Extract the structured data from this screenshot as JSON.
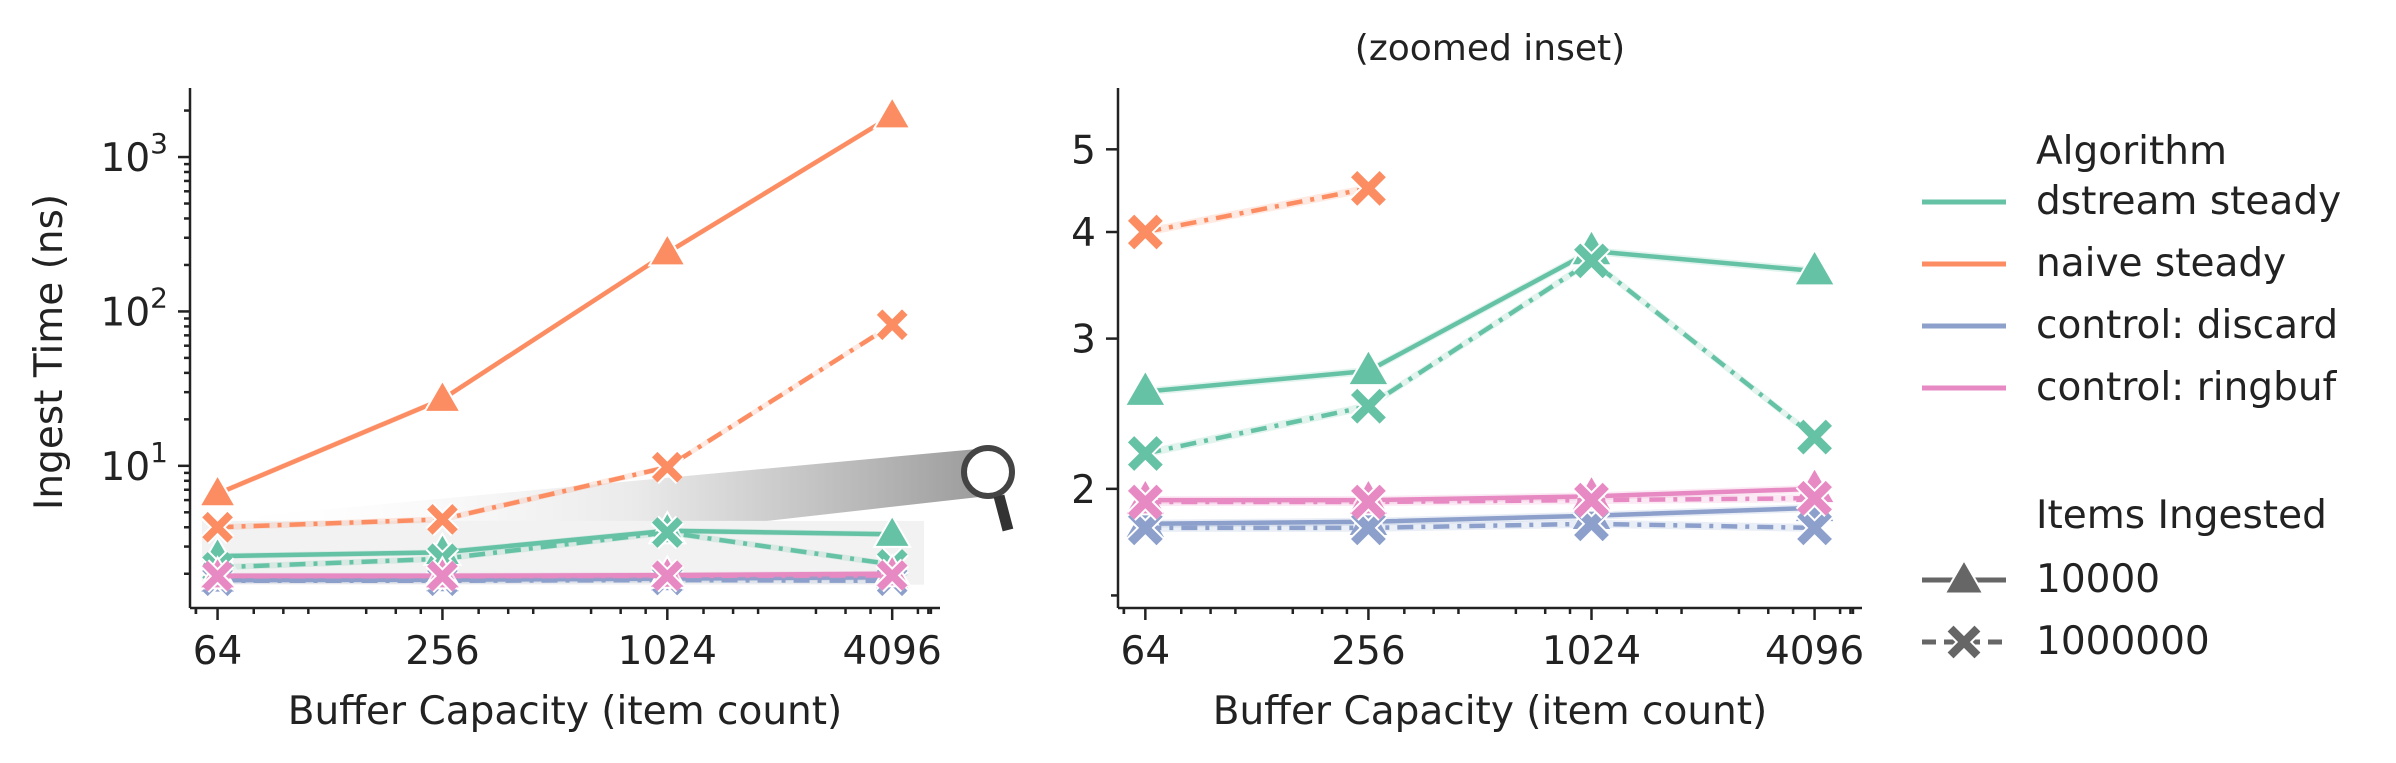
{
  "chart_data": [
    {
      "type": "line",
      "title": "",
      "xlabel": "Buffer Capacity (item count)",
      "ylabel": "Ingest Time (ns)",
      "xscale": "log2",
      "yscale": "log10",
      "xlim": [
        54,
        5500
      ],
      "ylim": [
        1.2,
        2800
      ],
      "categories": [
        "64",
        "256",
        "1024",
        "4096"
      ],
      "x": [
        64,
        256,
        1024,
        4096
      ],
      "yticks": [
        10,
        100,
        1000
      ],
      "ytick_labels": [
        {
          "base": "10",
          "exp": "1"
        },
        {
          "base": "10",
          "exp": "2"
        },
        {
          "base": "10",
          "exp": "3"
        }
      ],
      "series": [
        {
          "algorithm": "dstream steady",
          "items": "10000",
          "values": [
            2.6,
            2.75,
            3.8,
            3.6
          ]
        },
        {
          "algorithm": "dstream steady",
          "items": "1000000",
          "values": [
            2.2,
            2.5,
            3.7,
            2.3
          ]
        },
        {
          "algorithm": "naive steady",
          "items": "10000",
          "values": [
            6.6,
            27,
            240,
            1850
          ]
        },
        {
          "algorithm": "naive steady",
          "items": "1000000",
          "values": [
            4.0,
            4.5,
            9.8,
            82
          ]
        },
        {
          "algorithm": "control: discard",
          "items": "10000",
          "values": [
            1.82,
            1.83,
            1.86,
            1.9
          ]
        },
        {
          "algorithm": "control: discard",
          "items": "1000000",
          "values": [
            1.8,
            1.8,
            1.82,
            1.8
          ]
        },
        {
          "algorithm": "control: ringbuf",
          "items": "10000",
          "values": [
            1.94,
            1.94,
            1.96,
            2.0
          ]
        },
        {
          "algorithm": "control: ringbuf",
          "items": "1000000",
          "values": [
            1.93,
            1.93,
            1.94,
            1.95
          ]
        }
      ],
      "zoom_region": {
        "x": [
          54,
          5500
        ],
        "y": [
          1.7,
          4.4
        ]
      },
      "grid": false
    },
    {
      "type": "line",
      "title": "(zoomed inset)",
      "xlabel": "Buffer Capacity (item count)",
      "ylabel": "",
      "xscale": "log2",
      "yscale": "log",
      "xlim": [
        54,
        5500
      ],
      "ylim": [
        1.45,
        5.9
      ],
      "categories": [
        "64",
        "256",
        "1024",
        "4096"
      ],
      "x": [
        64,
        256,
        1024,
        4096
      ],
      "yticks": [
        2,
        3,
        4,
        5
      ],
      "ytick_labels": [
        "2",
        "3",
        "4",
        "5"
      ],
      "yticks_minor": [
        1.5
      ],
      "grid": false
    }
  ],
  "legend": {
    "placement": "right",
    "hue_title": "Algorithm",
    "hue_entries": [
      {
        "label": "dstream steady",
        "color": "#66c2a5"
      },
      {
        "label": "naive steady",
        "color": "#fc8d62"
      },
      {
        "label": "control: discard",
        "color": "#8da0cb"
      },
      {
        "label": "control: ringbuf",
        "color": "#e78ac3"
      }
    ],
    "style_title": "Items Ingested",
    "style_entries": [
      {
        "label": "10000",
        "marker": "triangle",
        "dash": "solid"
      },
      {
        "label": "1000000",
        "marker": "x",
        "dash": "dashed"
      }
    ]
  },
  "colors": {
    "dstream steady": "#66c2a5",
    "naive steady": "#fc8d62",
    "control: discard": "#8da0cb",
    "control: ringbuf": "#e78ac3",
    "style_key": "#666666"
  },
  "icons": {
    "zoom": "magnifier-icon"
  }
}
